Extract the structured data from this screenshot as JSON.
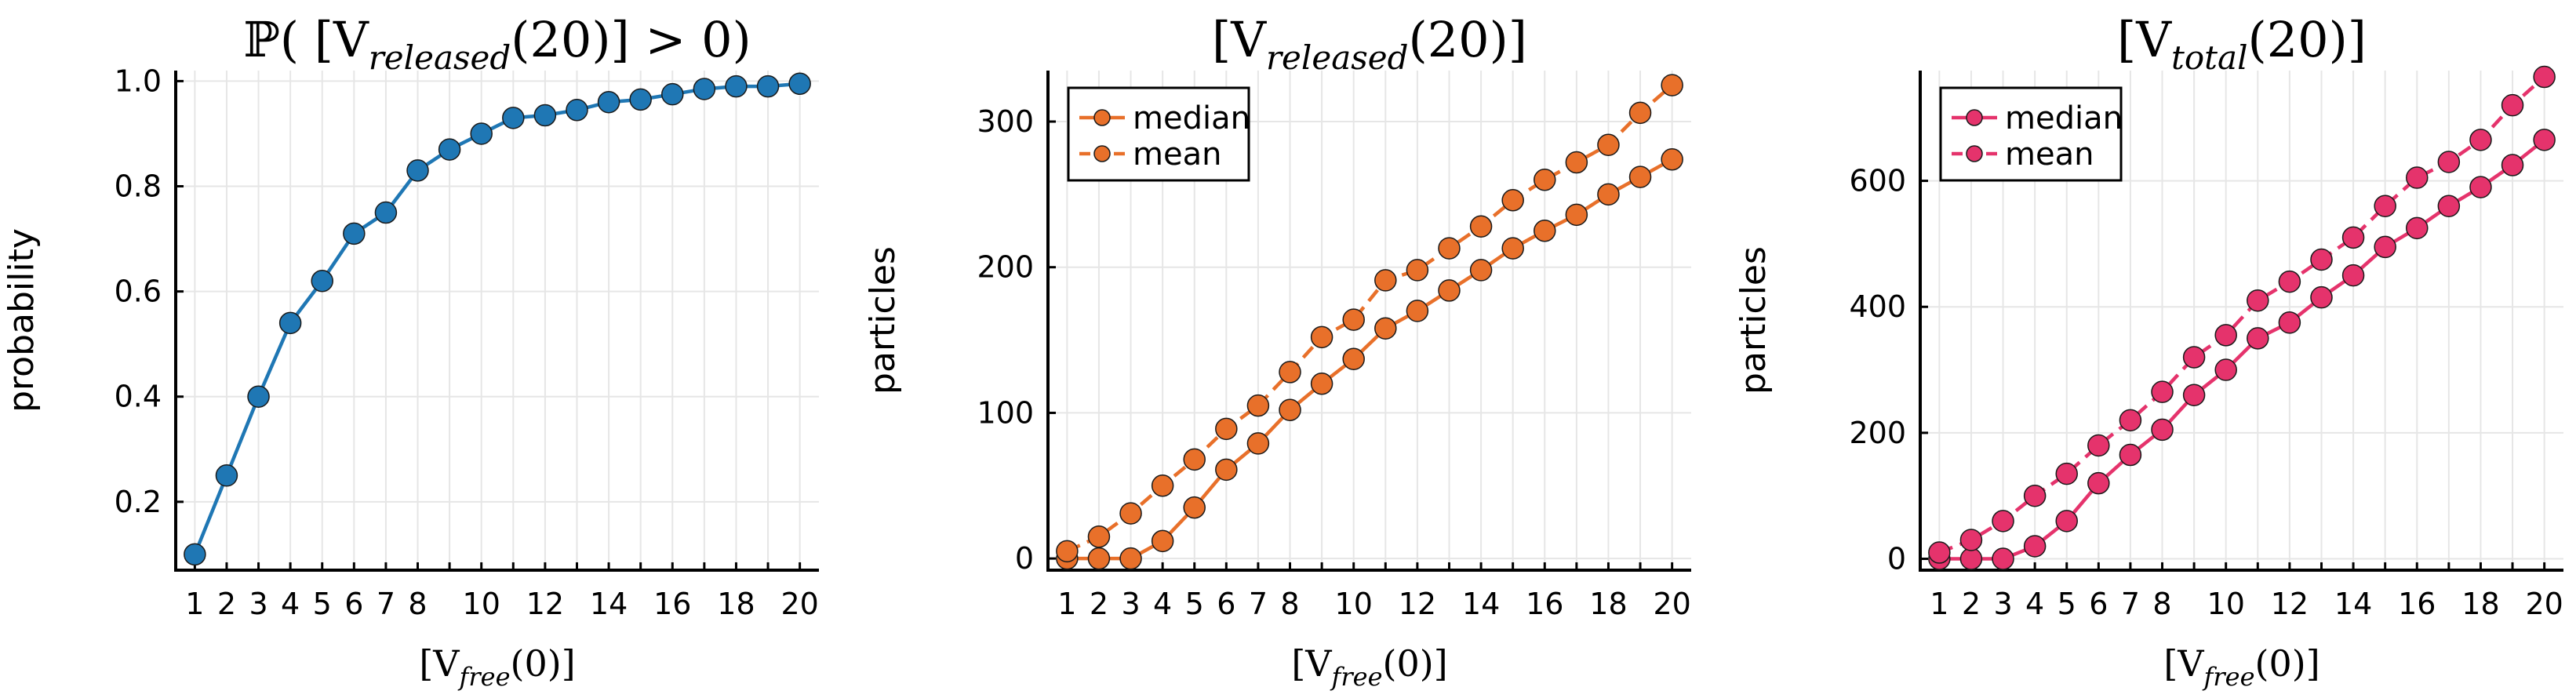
{
  "chart_data": [
    {
      "type": "line",
      "title": {
        "prefix": "ℙ( [V",
        "sub": "released",
        "suffix": "(20)] > 0)"
      },
      "xlabel": {
        "prefix": "[V",
        "sub": "free",
        "suffix": "(0)]"
      },
      "ylabel": "probability",
      "x": [
        1,
        2,
        3,
        4,
        5,
        6,
        7,
        8,
        9,
        10,
        11,
        12,
        13,
        14,
        15,
        16,
        17,
        18,
        19,
        20
      ],
      "xticks": [
        1,
        2,
        3,
        4,
        5,
        6,
        7,
        8,
        10,
        12,
        14,
        16,
        18,
        20
      ],
      "xlim": [
        0.4,
        20.6
      ],
      "yticks": [
        0.2,
        0.4,
        0.6,
        0.8,
        1.0
      ],
      "ytick_labels": [
        "0.2",
        "0.4",
        "0.6",
        "0.8",
        "1.0"
      ],
      "ylim": [
        0.07,
        1.02
      ],
      "legend": false,
      "series": [
        {
          "name": "probability",
          "color": "#1f77b4",
          "style": "solid",
          "values": [
            0.1,
            0.25,
            0.4,
            0.54,
            0.62,
            0.71,
            0.75,
            0.83,
            0.87,
            0.9,
            0.93,
            0.935,
            0.945,
            0.96,
            0.965,
            0.975,
            0.985,
            0.99,
            0.99,
            0.995
          ]
        }
      ]
    },
    {
      "type": "line",
      "title": {
        "prefix": "[V",
        "sub": "released",
        "suffix": "(20)]"
      },
      "xlabel": {
        "prefix": "[V",
        "sub": "free",
        "suffix": "(0)]"
      },
      "ylabel": "particles",
      "x": [
        1,
        2,
        3,
        4,
        5,
        6,
        7,
        8,
        9,
        10,
        11,
        12,
        13,
        14,
        15,
        16,
        17,
        18,
        19,
        20
      ],
      "xticks": [
        1,
        2,
        3,
        4,
        5,
        6,
        7,
        8,
        10,
        12,
        14,
        16,
        18,
        20
      ],
      "xlim": [
        0.4,
        20.6
      ],
      "yticks": [
        0,
        100,
        200,
        300
      ],
      "ytick_labels": [
        "0",
        "100",
        "200",
        "300"
      ],
      "ylim": [
        -8,
        335
      ],
      "legend": true,
      "series": [
        {
          "name": "median",
          "color": "#e8702a",
          "style": "solid",
          "values": [
            0,
            0,
            0,
            12,
            35,
            61,
            79,
            102,
            120,
            137,
            158,
            170,
            184,
            198,
            213,
            225,
            236,
            250,
            262,
            274
          ]
        },
        {
          "name": "mean",
          "color": "#e8702a",
          "style": "dashed",
          "values": [
            5,
            15,
            31,
            50,
            68,
            89,
            105,
            128,
            152,
            164,
            191,
            198,
            213,
            228,
            246,
            260,
            272,
            284,
            306,
            325
          ]
        }
      ]
    },
    {
      "type": "line",
      "title": {
        "prefix": "[V",
        "sub": "total",
        "suffix": "(20)]"
      },
      "xlabel": {
        "prefix": "[V",
        "sub": "free",
        "suffix": "(0)]"
      },
      "ylabel": "particles",
      "x": [
        1,
        2,
        3,
        4,
        5,
        6,
        7,
        8,
        9,
        10,
        11,
        12,
        13,
        14,
        15,
        16,
        17,
        18,
        19,
        20
      ],
      "xticks": [
        1,
        2,
        3,
        4,
        5,
        6,
        7,
        8,
        10,
        12,
        14,
        16,
        18,
        20
      ],
      "xlim": [
        0.4,
        20.6
      ],
      "yticks": [
        0,
        200,
        400,
        600
      ],
      "ytick_labels": [
        "0",
        "200",
        "400",
        "600"
      ],
      "ylim": [
        -18,
        775
      ],
      "legend": true,
      "series": [
        {
          "name": "median",
          "color": "#e5336c",
          "style": "solid",
          "values": [
            0,
            0,
            0,
            20,
            60,
            120,
            165,
            205,
            260,
            300,
            350,
            375,
            415,
            450,
            495,
            525,
            560,
            590,
            625,
            665
          ]
        },
        {
          "name": "mean",
          "color": "#e5336c",
          "style": "dashed",
          "values": [
            10,
            30,
            60,
            100,
            135,
            180,
            220,
            265,
            320,
            355,
            410,
            440,
            475,
            510,
            560,
            605,
            630,
            665,
            720,
            765
          ]
        }
      ]
    }
  ]
}
